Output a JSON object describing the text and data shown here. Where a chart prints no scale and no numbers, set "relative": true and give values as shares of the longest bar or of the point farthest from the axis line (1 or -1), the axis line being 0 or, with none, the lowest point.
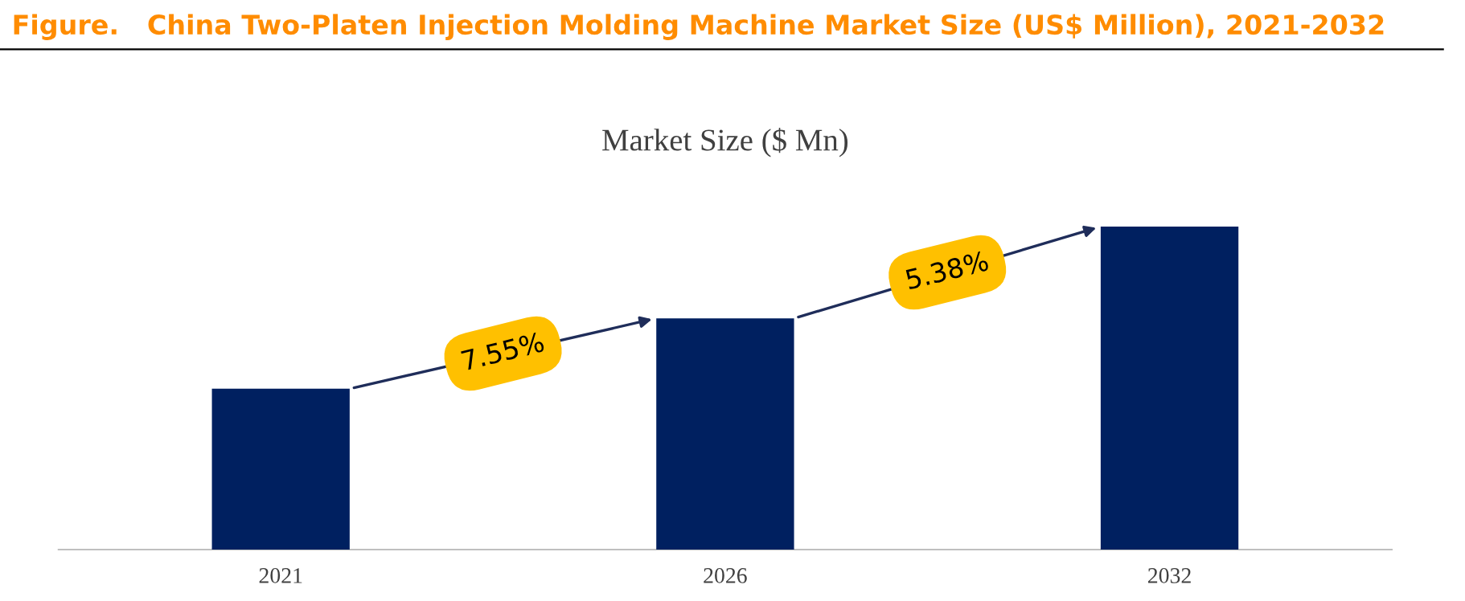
{
  "chart_data": {
    "type": "bar",
    "title": "Figure.   China Two-Platen Injection Molding Machine Market Size (US$ Million), 2021-2032",
    "subtitle": "Market Size ($ Mn)",
    "categories": [
      "2021",
      "2026",
      "2032"
    ],
    "values": [
      0.498,
      0.716,
      1
    ],
    "color": "#002060",
    "relative": true,
    "annotations": [
      "7.55%",
      "5.38%"
    ]
  }
}
